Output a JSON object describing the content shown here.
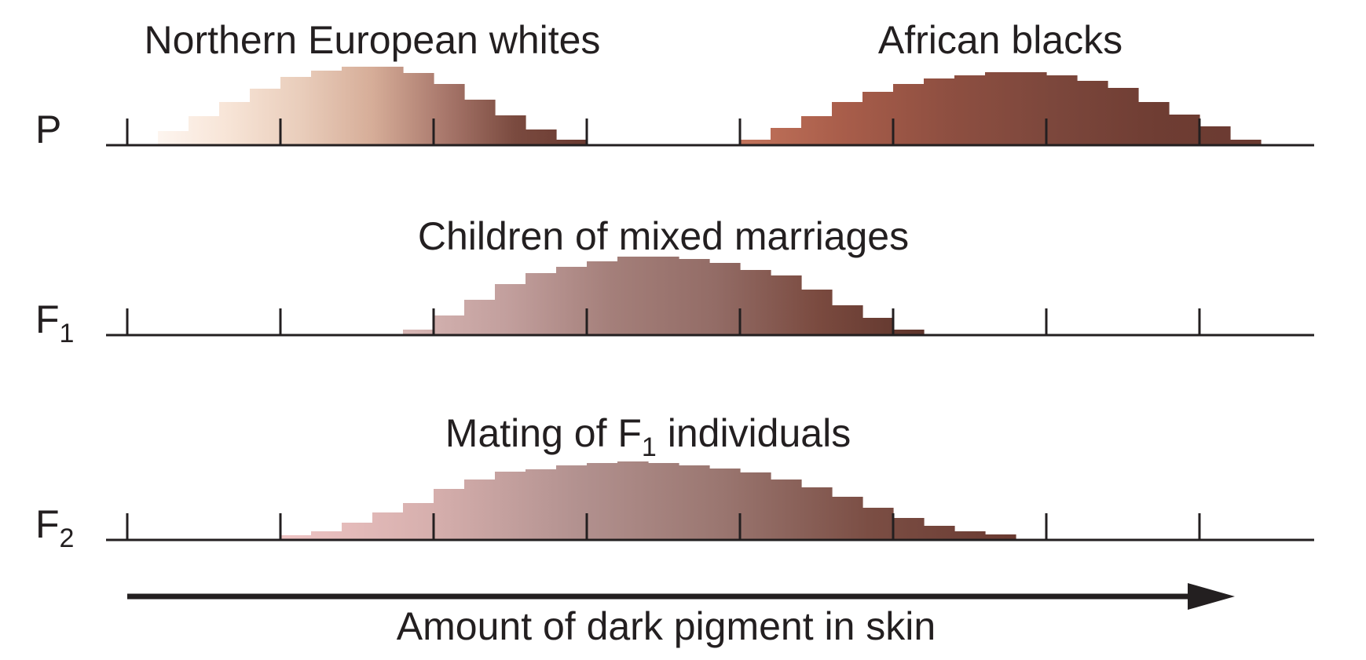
{
  "panels": [
    {
      "row_label": "P",
      "row_label_sub": "",
      "groups": [
        {
          "title": "Northern European whites",
          "title_sub": "",
          "title_after": "",
          "bins_start": 0.2,
          "bin_width": 0.2,
          "heights": [
            0.18,
            0.37,
            0.55,
            0.72,
            0.87,
            0.95,
            1.0,
            1.0,
            0.92,
            0.78,
            0.58,
            0.38,
            0.2,
            0.07
          ],
          "colors": [
            "#fdf5ef",
            "#f7e4d6",
            "#e9cdbb",
            "#d6ad98",
            "#a9786c",
            "#7a4a3f",
            "#6a3a31"
          ]
        },
        {
          "title": "African blacks",
          "title_sub": "",
          "title_after": "",
          "bins_start": 4.0,
          "bin_width": 0.2,
          "heights": [
            0.07,
            0.22,
            0.37,
            0.55,
            0.68,
            0.78,
            0.85,
            0.89,
            0.93,
            0.93,
            0.89,
            0.82,
            0.73,
            0.55,
            0.39,
            0.24,
            0.07
          ],
          "colors": [
            "#c2735b",
            "#a85d4a",
            "#8e4f41",
            "#7c473c",
            "#6f3d33",
            "#6a3a31"
          ]
        }
      ]
    },
    {
      "row_label": "F",
      "row_label_sub": "1",
      "groups": [
        {
          "title": "Children of mixed marriages",
          "title_sub": "",
          "title_after": "",
          "bins_start": 1.8,
          "bin_width": 0.2,
          "heights": [
            0.07,
            0.25,
            0.45,
            0.65,
            0.79,
            0.87,
            0.94,
            1.0,
            1.0,
            0.97,
            0.92,
            0.83,
            0.76,
            0.58,
            0.38,
            0.22,
            0.07
          ],
          "colors": [
            "#d7b6b4",
            "#c29f9d",
            "#a47f7a",
            "#936c66",
            "#7a4a3f",
            "#5e342b"
          ]
        }
      ]
    },
    {
      "row_label": "F",
      "row_label_sub": "2",
      "groups": [
        {
          "title": "Mating of F",
          "title_sub": "1",
          "title_after": " individuals",
          "bins_start": 1.0,
          "bin_width": 0.2,
          "heights": [
            0.06,
            0.11,
            0.22,
            0.35,
            0.47,
            0.65,
            0.77,
            0.87,
            0.9,
            0.95,
            0.98,
            1.0,
            0.98,
            0.95,
            0.91,
            0.86,
            0.77,
            0.67,
            0.55,
            0.41,
            0.28,
            0.18,
            0.11,
            0.07
          ],
          "colors": [
            "#efc4c4",
            "#d7b0ae",
            "#b39290",
            "#9a7670",
            "#7b4e44",
            "#6a3a31"
          ]
        }
      ]
    }
  ],
  "axis": {
    "ticks": [
      0,
      1,
      2,
      3,
      4,
      5,
      6,
      7
    ],
    "label": "Amount of dark pigment in skin"
  }
}
